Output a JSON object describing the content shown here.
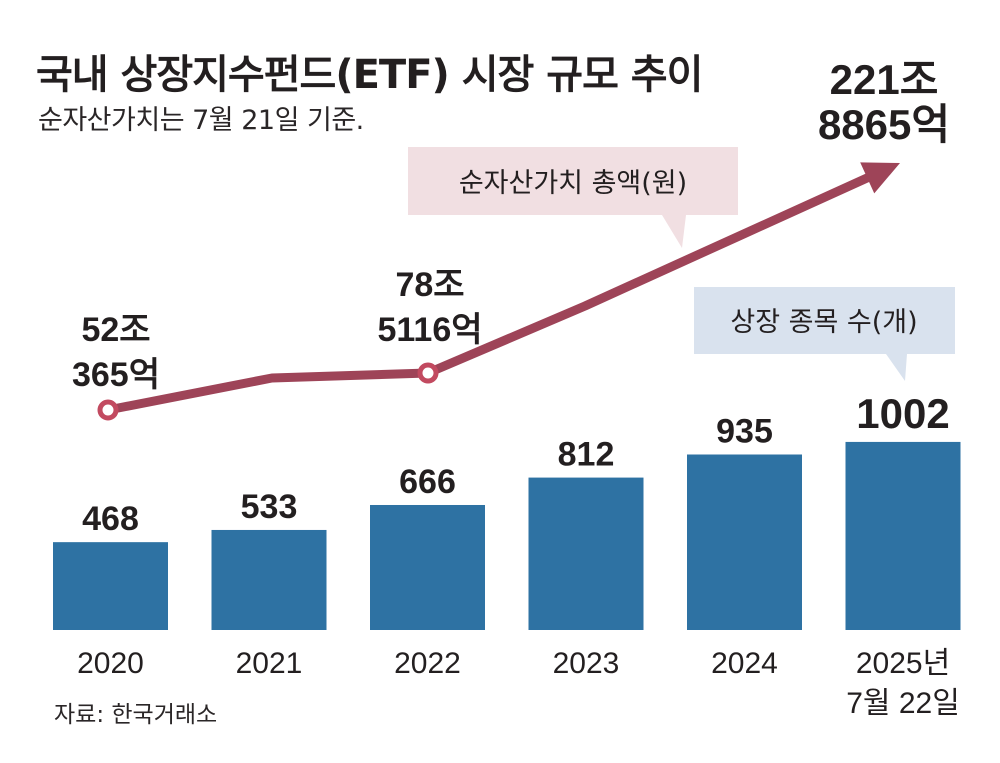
{
  "header": {
    "title": "국내 상장지수펀드(ETF) 시장 규모 추이",
    "subtitle": "순자산가치는 7월 21일 기준."
  },
  "source": "자료: 한국거래소",
  "colors": {
    "bar": "#2e72a3",
    "line": "#9e4458",
    "marker": "#c24a60",
    "callout_line_bg": "#f1dfe2",
    "callout_bar_bg": "#d9e2ee",
    "text": "#231f20"
  },
  "chart_data": {
    "type": "bar+line",
    "title": "국내 상장지수펀드(ETF) 시장 규모 추이",
    "subtitle": "순자산가치는 7월 21일 기준.",
    "categories": [
      "2020",
      "2021",
      "2022",
      "2023",
      "2024",
      "2025년 7월 22일"
    ],
    "category_labels": [
      [
        "2020"
      ],
      [
        "2021"
      ],
      [
        "2022"
      ],
      [
        "2023"
      ],
      [
        "2024"
      ],
      [
        "2025년",
        "7월 22일"
      ]
    ],
    "series": [
      {
        "name": "상장 종목 수(개)",
        "type": "bar",
        "values": [
          468,
          533,
          666,
          812,
          935,
          1002
        ],
        "labels": [
          "468",
          "533",
          "666",
          "812",
          "935",
          "1002"
        ],
        "ylim": [
          0,
          1100
        ]
      },
      {
        "name": "순자산가치 총액(원)",
        "type": "line",
        "unit": "조원",
        "values": [
          52.04,
          74,
          78.51,
          125,
          173,
          221.89
        ],
        "labeled_points": [
          {
            "index": 0,
            "lines": [
              "52조",
              "365억"
            ]
          },
          {
            "index": 2,
            "lines": [
              "78조",
              "5116억"
            ]
          },
          {
            "index": 5,
            "lines": [
              "221조",
              "8865억"
            ]
          }
        ],
        "markers_at": [
          0,
          2
        ],
        "ends_with_arrow": true
      }
    ],
    "legend_callouts": [
      {
        "text": "순자산가치 총액(원)",
        "series": "line"
      },
      {
        "text": "상장 종목 수(개)",
        "series": "bar"
      }
    ],
    "xlabel": "",
    "ylabel": "",
    "grid": false
  }
}
